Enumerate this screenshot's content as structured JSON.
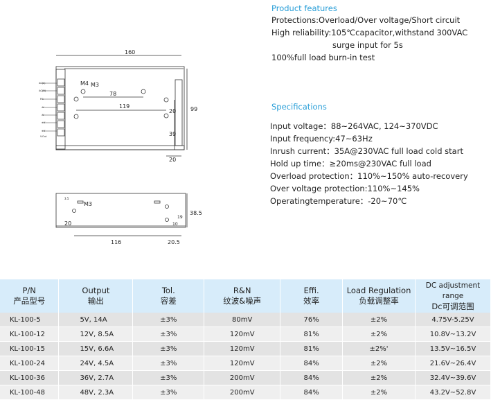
{
  "features": {
    "title": "Product features",
    "lines": [
      "Protections:Overload/Over voltage/Short circuit",
      "High reliability:105℃capacitor,withstand 300VAC",
      "surge input for 5s",
      "100%full load burn-in test"
    ]
  },
  "specs": {
    "title": "Specifications",
    "lines": [
      "Input voltage：88~264VAC, 124~370VDC",
      "Input frequency:47~63Hz",
      "Inrush current：35A@230VAC full load cold start",
      "Hold up time：≥20ms@230VAC full load",
      "Overload protection：110%~150% auto-recovery",
      "Over voltage protection:110%~145%",
      "Operatingtemperature：-20~70℃"
    ]
  },
  "drawing_top": {
    "dims": [
      "160",
      "99",
      "78",
      "119",
      "20",
      "39",
      "20"
    ],
    "labels": [
      "M4",
      "M3"
    ],
    "terminals": [
      "AC(L)",
      "AC(N)",
      "FG",
      "-V",
      "-V",
      "+V",
      "+V",
      "V.Out"
    ]
  },
  "drawing_side": {
    "dims": [
      "116",
      "20.5",
      "38.5",
      "20",
      "10",
      "19"
    ],
    "labels": [
      "M3",
      "3.5"
    ]
  },
  "table": {
    "headers": [
      [
        "P/N",
        "产品型号"
      ],
      [
        "Output",
        "输出"
      ],
      [
        "Tol.",
        "容差"
      ],
      [
        "R&N",
        "纹波&噪声"
      ],
      [
        "Effi.",
        "效率"
      ],
      [
        "Load Regulation",
        "负载调整率"
      ],
      [
        "DC adjustment range",
        "Dc可调范围"
      ]
    ],
    "rows": [
      [
        "KL-100-5",
        "5V, 14A",
        "±3%",
        "80mV",
        "76%",
        "±2%",
        "4.75V-5.25V"
      ],
      [
        "KL-100-12",
        "12V, 8.5A",
        "±3%",
        "120mV",
        "81%",
        "±2%",
        "10.8V~13.2V"
      ],
      [
        "KL-100-15",
        "15V, 6.6A",
        "±3%",
        "120mV",
        "81%",
        "±2%'",
        "13.5V~16.5V"
      ],
      [
        "KL-100-24",
        "24V, 4.5A",
        "±3%",
        "120mV",
        "84%",
        "±2%",
        "21.6V~26.4V"
      ],
      [
        "KL-100-36",
        "36V, 2.7A",
        "±3%",
        "200mV",
        "84%",
        "±2%",
        "32.4V~39.6V"
      ],
      [
        "KL-100-48",
        "48V, 2.3A",
        "±3%",
        "200mV",
        "84%",
        "±2%",
        "43.2V~52.8V"
      ]
    ]
  },
  "colors": {
    "heading": "#2a9fd8",
    "header_bg": "#d7ecfa",
    "row_bg": "#e3e3e3"
  }
}
